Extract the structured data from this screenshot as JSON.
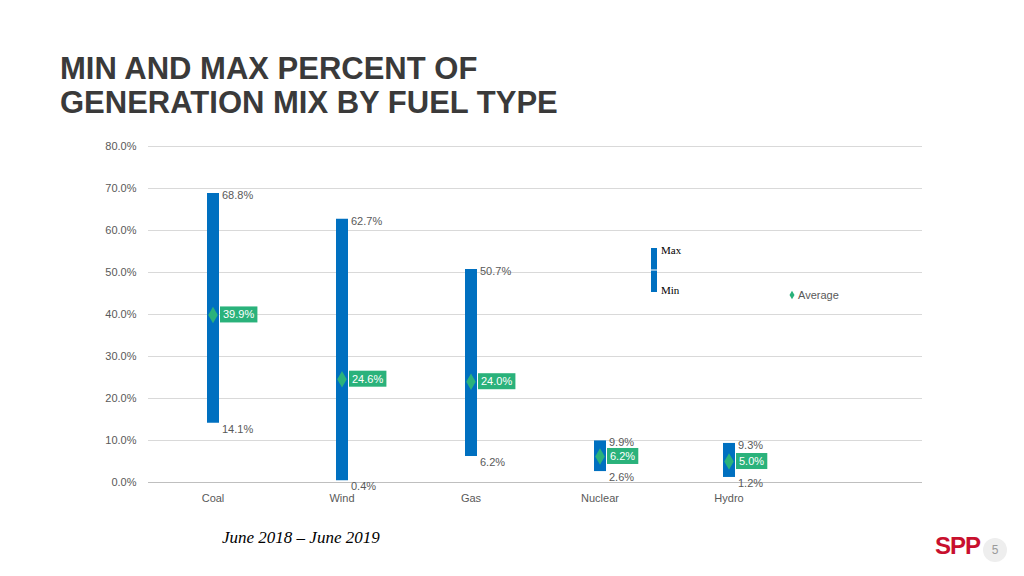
{
  "chart_data": {
    "type": "floating_bar",
    "title": "MIN AND MAX PERCENT OF GENERATION MIX BY FUEL TYPE",
    "categories": [
      "Coal",
      "Wind",
      "Gas",
      "Nuclear",
      "Hydro"
    ],
    "series": [
      {
        "name": "Max",
        "values": [
          68.8,
          62.7,
          50.7,
          9.9,
          9.3
        ],
        "value_labels": [
          "68.8%",
          "62.7%",
          "50.7%",
          "9.9%",
          "9.3%"
        ],
        "color": "#0070c0"
      },
      {
        "name": "Min",
        "values": [
          14.1,
          0.4,
          6.2,
          2.6,
          1.2
        ],
        "value_labels": [
          "14.1%",
          "0.4%",
          "6.2%",
          "2.6%",
          "1.2%"
        ],
        "color": "#0070c0"
      },
      {
        "name": "Average",
        "values": [
          39.9,
          24.6,
          24.0,
          6.2,
          5.0
        ],
        "value_labels": [
          "39.9%",
          "24.6%",
          "24.0%",
          "6.2%",
          "5.0%"
        ],
        "color": "#2ab27b",
        "marker": "diamond"
      }
    ],
    "ylim": [
      0,
      80
    ],
    "yticks": [
      {
        "value": 0,
        "label": "0.0%"
      },
      {
        "value": 10,
        "label": "10.0%"
      },
      {
        "value": 20,
        "label": "20.0%"
      },
      {
        "value": 30,
        "label": "30.0%"
      },
      {
        "value": 40,
        "label": "40.0%"
      },
      {
        "value": 50,
        "label": "50.0%"
      },
      {
        "value": 60,
        "label": "60.0%"
      },
      {
        "value": 70,
        "label": "70.0%"
      },
      {
        "value": 80,
        "label": "80.0%"
      }
    ],
    "grid": true,
    "data_labels": true,
    "legend": "upper right",
    "annotations": [
      "June 2018 – June 2019",
      "SPP",
      "5"
    ]
  }
}
